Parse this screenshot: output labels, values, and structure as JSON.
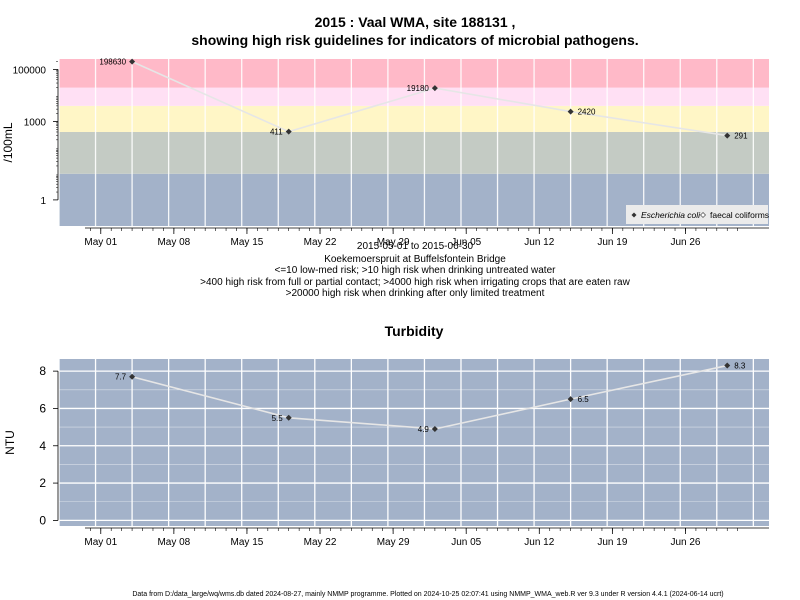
{
  "title_line1": "2015 : Vaal WMA, site 188131 ,",
  "title_line2": "showing high risk guidelines for indicators of microbial pathogens.",
  "x_tick_labels": [
    "May 01",
    "May 08",
    "May 15",
    "May 22",
    "May 29",
    "Jun 05",
    "Jun 12",
    "Jun 19",
    "Jun 26"
  ],
  "subtitle_lines": [
    "2015-05-01 to 2015-06-30",
    "Koekemoerspruit at Buffelsfontein Bridge",
    "<=10 low-med risk; >10 high risk when drinking untreated water",
    ">400 high risk from full or partial contact; >4000 high risk when irrigating crops that are eaten raw",
    ">20000 high risk when drinking after only limited treatment"
  ],
  "footer": "Data from D:/data_large/wq/wms.db dated 2024-08-27, mainly NMMP programme. Plotted on 2024-10-25 02:07:41 using NMMP_WMA_web.R ver 9.3 under R version 4.4.1 (2024-06-14 ucrt)",
  "colors": {
    "panel_bg": "#a3b2c9",
    "band_low": "#c4cbc4",
    "band_contact": "#fff6c6",
    "band_irrigation": "#ffe0f4",
    "band_drinking": "#ffb9c8",
    "line": "#e6e6e6",
    "point": "#333333"
  },
  "chart_data": [
    {
      "type": "line",
      "title": "",
      "ylabel": "/100mL",
      "y_scale": "log10",
      "ylim": [
        0.1,
        250000
      ],
      "y_ticks": [
        1,
        1000,
        100000
      ],
      "y_tick_labels": [
        "1",
        "1000",
        "100000"
      ],
      "xlim": [
        "2015-04-27",
        "2015-07-04"
      ],
      "x_ticks": [
        "2015-05-01",
        "2015-05-08",
        "2015-05-15",
        "2015-05-22",
        "2015-05-29",
        "2015-06-05",
        "2015-06-12",
        "2015-06-19",
        "2015-06-26"
      ],
      "guideline_bands": [
        {
          "from": 0.1,
          "to": 10,
          "color": "#a3b2c9"
        },
        {
          "from": 10,
          "to": 400,
          "color": "#c4cbc4"
        },
        {
          "from": 400,
          "to": 4000,
          "color": "#fff6c6"
        },
        {
          "from": 4000,
          "to": 20000,
          "color": "#ffe0f4"
        },
        {
          "from": 20000,
          "to": 250000,
          "color": "#ffb9c8"
        }
      ],
      "legend": {
        "position": "bottom-right",
        "entries": [
          "Escherichia coli",
          "faecal coliforms"
        ]
      },
      "series": [
        {
          "name": "Escherichia coli",
          "x": [
            "2015-05-04",
            "2015-05-19",
            "2015-06-02",
            "2015-06-15",
            "2015-06-30"
          ],
          "values": [
            198630,
            411,
            19180,
            2420,
            291
          ],
          "labels": [
            "198630",
            "411",
            "19180",
            "2420",
            "291"
          ]
        }
      ]
    },
    {
      "type": "line",
      "title": "Turbidity",
      "ylabel": "NTU",
      "ylim": [
        -0.3,
        8.65
      ],
      "y_ticks": [
        0,
        2,
        4,
        6,
        8
      ],
      "y_tick_labels": [
        "0",
        "2",
        "4",
        "6",
        "8"
      ],
      "xlim": [
        "2015-04-27",
        "2015-07-04"
      ],
      "x_ticks": [
        "2015-05-01",
        "2015-05-08",
        "2015-05-15",
        "2015-05-22",
        "2015-05-29",
        "2015-06-05",
        "2015-06-12",
        "2015-06-19",
        "2015-06-26"
      ],
      "grid": true,
      "series": [
        {
          "name": "",
          "x": [
            "2015-05-04",
            "2015-05-19",
            "2015-06-02",
            "2015-06-15",
            "2015-06-30"
          ],
          "values": [
            7.7,
            5.5,
            4.9,
            6.5,
            8.3
          ],
          "labels": [
            "7.7",
            "5.5",
            "4.9",
            "6.5",
            "8.3"
          ]
        }
      ]
    }
  ]
}
